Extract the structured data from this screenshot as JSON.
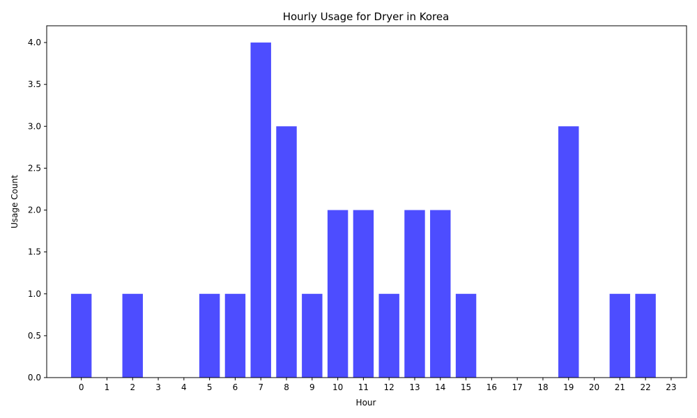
{
  "chart_data": {
    "type": "bar",
    "title": "Hourly Usage for Dryer in Korea",
    "xlabel": "Hour",
    "ylabel": "Usage Count",
    "categories": [
      "0",
      "1",
      "2",
      "3",
      "4",
      "5",
      "6",
      "7",
      "8",
      "9",
      "10",
      "11",
      "12",
      "13",
      "14",
      "15",
      "16",
      "17",
      "18",
      "19",
      "20",
      "21",
      "22",
      "23"
    ],
    "values": [
      1,
      0,
      1,
      0,
      0,
      1,
      1,
      4,
      3,
      1,
      2,
      2,
      1,
      2,
      2,
      1,
      0,
      0,
      0,
      3,
      0,
      1,
      1,
      0
    ],
    "xlim": [
      -1.35,
      23.6
    ],
    "ylim": [
      0,
      4.2
    ],
    "yticks": [
      "0.0",
      "0.5",
      "1.0",
      "1.5",
      "2.0",
      "2.5",
      "3.0",
      "3.5",
      "4.0"
    ],
    "ytick_values": [
      0,
      0.5,
      1.0,
      1.5,
      2.0,
      2.5,
      3.0,
      3.5,
      4.0
    ],
    "bar_color": "#4d4dff",
    "grid": false,
    "legend": "none"
  }
}
